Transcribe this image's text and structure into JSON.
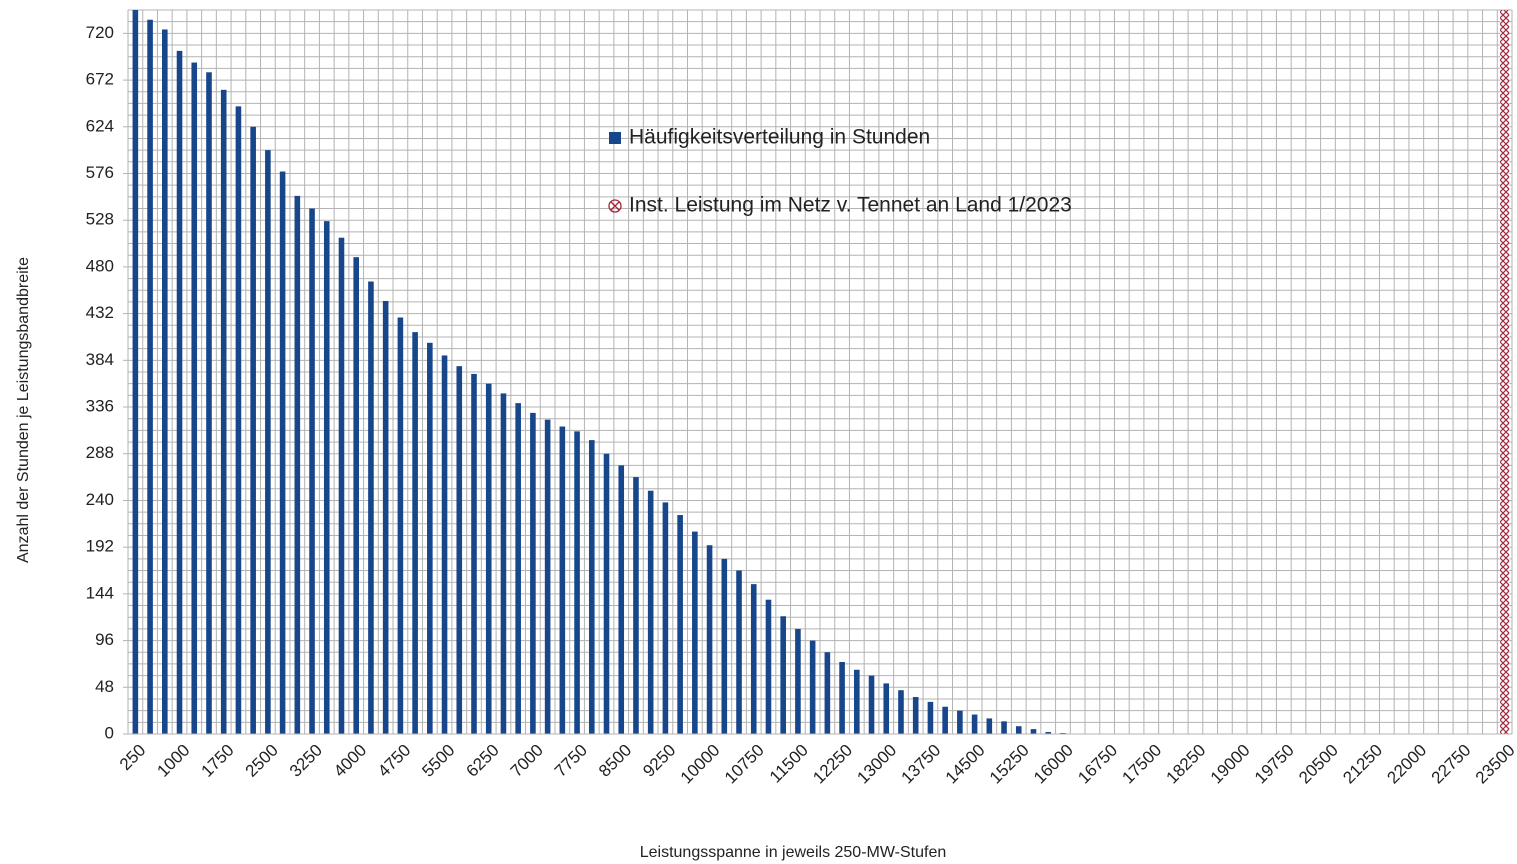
{
  "chart_data": {
    "type": "bar",
    "x_label": "Leistungsspanne in jeweils 250-MW-Stufen",
    "y_label": "Anzahl der Stunden je Leistungsbandbreite",
    "categories": [
      "250",
      null,
      null,
      "1000",
      null,
      null,
      "1750",
      null,
      null,
      "2500",
      null,
      null,
      "3250",
      null,
      null,
      "4000",
      null,
      null,
      "4750",
      null,
      null,
      "5500",
      null,
      null,
      "6250",
      null,
      null,
      "7000",
      null,
      null,
      "7750",
      null,
      null,
      "8500",
      null,
      null,
      "9250",
      null,
      null,
      "10000",
      null,
      null,
      "10750",
      null,
      null,
      "11500",
      null,
      null,
      "12250",
      null,
      null,
      "13000",
      null,
      null,
      "13750",
      null,
      null,
      "14500",
      null,
      null,
      "15250",
      null,
      null,
      "16000",
      null,
      null,
      "16750",
      null,
      null,
      "17500",
      null,
      null,
      "18250",
      null,
      null,
      "19000",
      null,
      null,
      "19750",
      null,
      null,
      "20500",
      null,
      null,
      "21250",
      null,
      null,
      "22000",
      null,
      null,
      "22750",
      null,
      null,
      "23500"
    ],
    "series": [
      {
        "name": "Häufigkeitsverteilung in Stunden",
        "color": "#17468b",
        "marker": "square",
        "values": [
          744,
          734,
          724,
          702,
          690,
          680,
          662,
          645,
          624,
          600,
          578,
          553,
          540,
          527,
          510,
          490,
          465,
          445,
          428,
          413,
          402,
          389,
          378,
          370,
          360,
          350,
          340,
          330,
          323,
          316,
          311,
          302,
          288,
          276,
          264,
          250,
          238,
          225,
          208,
          194,
          180,
          168,
          154,
          138,
          121,
          108,
          96,
          84,
          74,
          66,
          60,
          52,
          45,
          38,
          33,
          28,
          24,
          20,
          16,
          13,
          8,
          5,
          2,
          1,
          0,
          0,
          0,
          0,
          0,
          0,
          0,
          0,
          0,
          0,
          0,
          0,
          0,
          0,
          0,
          0,
          0,
          0,
          0,
          0,
          0,
          0,
          0,
          0,
          0,
          0,
          0,
          0,
          0,
          0
        ]
      },
      {
        "name": "Inst. Leistung im Netz v. Tennet an Land 1/2023",
        "color": "#a0283c",
        "marker": "crosshatch",
        "values": [
          null,
          null,
          null,
          null,
          null,
          null,
          null,
          null,
          null,
          null,
          null,
          null,
          null,
          null,
          null,
          null,
          null,
          null,
          null,
          null,
          null,
          null,
          null,
          null,
          null,
          null,
          null,
          null,
          null,
          null,
          null,
          null,
          null,
          null,
          null,
          null,
          null,
          null,
          null,
          null,
          null,
          null,
          null,
          null,
          null,
          null,
          null,
          null,
          null,
          null,
          null,
          null,
          null,
          null,
          null,
          null,
          null,
          null,
          null,
          null,
          null,
          null,
          null,
          null,
          null,
          null,
          null,
          null,
          null,
          null,
          null,
          null,
          null,
          null,
          null,
          null,
          null,
          null,
          null,
          null,
          null,
          null,
          null,
          null,
          null,
          null,
          null,
          null,
          null,
          null,
          null,
          null,
          null,
          744
        ]
      }
    ],
    "ylim": [
      0,
      744
    ],
    "yticks": [
      0,
      48,
      96,
      144,
      192,
      240,
      288,
      336,
      384,
      432,
      480,
      528,
      576,
      624,
      672,
      720
    ],
    "grid_yticks": [
      0,
      12,
      24,
      36,
      48,
      60,
      72,
      84,
      96,
      108,
      120,
      132,
      144,
      156,
      168,
      180,
      192,
      204,
      216,
      228,
      240,
      252,
      264,
      276,
      288,
      300,
      312,
      324,
      336,
      348,
      360,
      372,
      384,
      396,
      408,
      420,
      432,
      444,
      456,
      468,
      480,
      492,
      504,
      516,
      528,
      540,
      552,
      564,
      576,
      588,
      600,
      612,
      624,
      636,
      648,
      660,
      672,
      684,
      696,
      708,
      720,
      732,
      744
    ],
    "grid": true,
    "legend": "top-center"
  }
}
